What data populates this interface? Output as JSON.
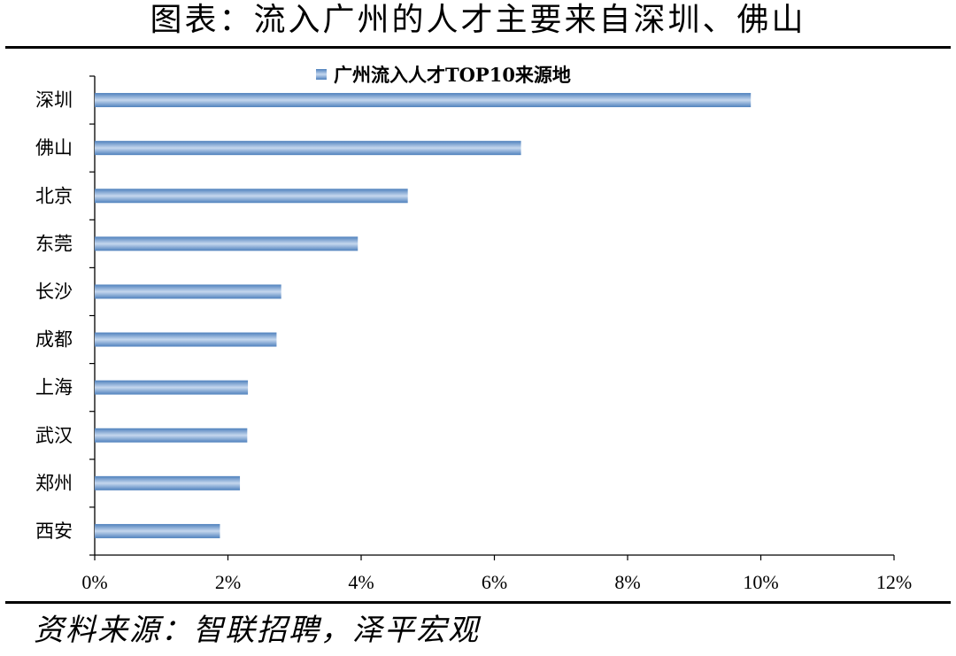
{
  "header": {
    "title": "图表：流入广州的人才主要来自深圳、佛山"
  },
  "footer": {
    "source": "资料来源：智联招聘，泽平宏观"
  },
  "colors": {
    "bar": "#4f81bd",
    "bar_light": "#c5d7ee",
    "axis": "#000000",
    "text": "#000000"
  },
  "chart_data": {
    "type": "bar",
    "orientation": "horizontal",
    "legend": {
      "position": "top-center"
    },
    "categories": [
      "深圳",
      "佛山",
      "北京",
      "东莞",
      "长沙",
      "成都",
      "上海",
      "武汉",
      "郑州",
      "西安"
    ],
    "series": [
      {
        "name": "广州流入人才TOP10来源地",
        "values": [
          9.85,
          6.4,
          4.7,
          3.95,
          2.8,
          2.73,
          2.3,
          2.29,
          2.18,
          1.88
        ]
      }
    ],
    "xlim": [
      0,
      12
    ],
    "x_ticks": [
      0,
      2,
      4,
      6,
      8,
      10,
      12
    ],
    "x_tick_labels": [
      "0%",
      "2%",
      "4%",
      "6%",
      "8%",
      "10%",
      "12%"
    ],
    "grid": false
  }
}
